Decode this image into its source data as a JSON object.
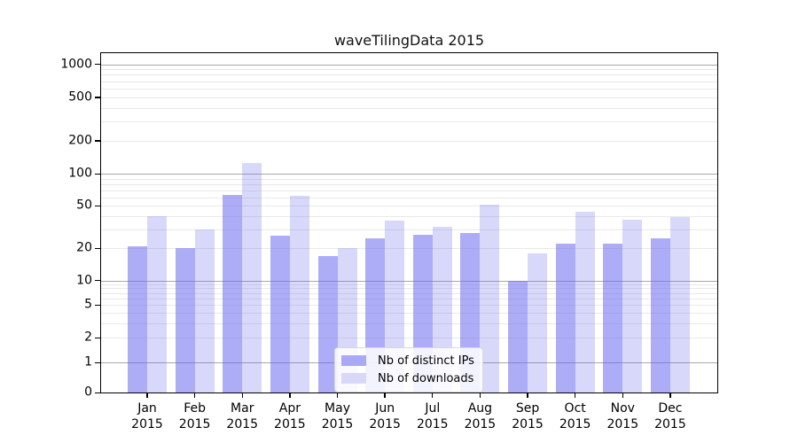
{
  "chart_data": {
    "type": "bar",
    "title": "waveTilingData 2015",
    "categories": [
      "Jan 2015",
      "Feb 2015",
      "Mar 2015",
      "Apr 2015",
      "May 2015",
      "Jun 2015",
      "Jul 2015",
      "Aug 2015",
      "Sep 2015",
      "Oct 2015",
      "Nov 2015",
      "Dec 2015"
    ],
    "series": [
      {
        "name": "Nb of distinct IPs",
        "color": "#a9a9f6",
        "fill": "rgba(105,105,240,0.55)",
        "values": [
          21,
          20,
          63,
          26,
          17,
          25,
          27,
          28,
          10,
          22,
          22,
          25
        ]
      },
      {
        "name": "Nb of downloads",
        "color": "#d8d8f8",
        "fill": "rgba(105,105,240,0.26)",
        "values": [
          40,
          30,
          125,
          62,
          20,
          36,
          32,
          51,
          18,
          44,
          37,
          39
        ]
      }
    ],
    "y_ticks": [
      0,
      1,
      2,
      5,
      10,
      20,
      50,
      100,
      200,
      500,
      1000
    ],
    "y_scale": "symlog",
    "ylim": [
      0,
      1500
    ],
    "xlabel": "",
    "ylabel": "",
    "grid": true,
    "legend_position": "bottom-center",
    "background": "#ffffff"
  },
  "colors": {
    "grid_major": "#a8a8a8",
    "grid_minor": "#e9e9e9",
    "axis": "#000000",
    "text": "#000000"
  }
}
